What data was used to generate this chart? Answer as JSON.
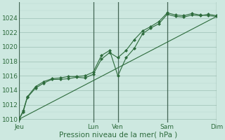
{
  "background_color": "#cde8e0",
  "plot_bg_color": "#cde8e0",
  "grid_major_color": "#9bbfb4",
  "grid_minor_color": "#b8d8d0",
  "line_color": "#2d6b3c",
  "marker_color": "#2d6b3c",
  "ylim": [
    1009.5,
    1026.2
  ],
  "yticks": [
    1010,
    1012,
    1014,
    1016,
    1018,
    1020,
    1022,
    1024
  ],
  "xlabel": "Pression niveau de la mer( hPa )",
  "xlabel_fontsize": 7.5,
  "tick_fontsize": 6.5,
  "xtick_labels": [
    "Jeu",
    "Lun",
    "Ven",
    "Sam",
    "Dim"
  ],
  "xtick_positions": [
    0,
    9,
    12,
    18,
    24
  ],
  "vline_positions": [
    0,
    9,
    12,
    18,
    24
  ],
  "series1_x": [
    0,
    0.5,
    1,
    2,
    3,
    4,
    5,
    6,
    7,
    8,
    9,
    10,
    11,
    12,
    13,
    14,
    15,
    16,
    17,
    18,
    19,
    20,
    21,
    22,
    23,
    24
  ],
  "series1_y": [
    1010.0,
    1011.0,
    1013.0,
    1014.3,
    1015.0,
    1015.5,
    1015.5,
    1015.6,
    1015.8,
    1015.7,
    1016.2,
    1018.3,
    1019.2,
    1018.5,
    1019.5,
    1021.0,
    1022.2,
    1022.8,
    1023.5,
    1024.7,
    1024.4,
    1024.3,
    1024.6,
    1024.4,
    1024.3,
    1024.2
  ],
  "series2_x": [
    0,
    0.5,
    1,
    2,
    3,
    4,
    5,
    6,
    7,
    8,
    9,
    10,
    11,
    12,
    13,
    14,
    15,
    16,
    17,
    18,
    19,
    20,
    21,
    22,
    23,
    24
  ],
  "series2_y": [
    1010.0,
    1011.2,
    1013.1,
    1014.5,
    1015.2,
    1015.6,
    1015.7,
    1015.9,
    1015.9,
    1016.0,
    1016.5,
    1018.8,
    1019.5,
    1016.0,
    1018.5,
    1019.8,
    1021.8,
    1022.6,
    1023.2,
    1024.5,
    1024.2,
    1024.1,
    1024.4,
    1024.3,
    1024.5,
    1024.3
  ],
  "series3_x": [
    0,
    24
  ],
  "series3_y": [
    1010.0,
    1024.2
  ]
}
